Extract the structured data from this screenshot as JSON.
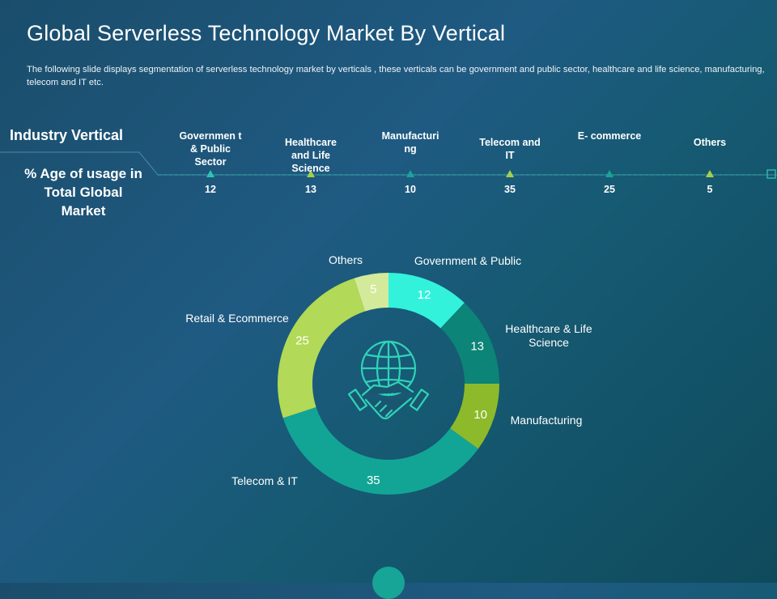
{
  "slide": {
    "title": "Global Serverless Technology Market By Vertical",
    "subtitle": "The following slide displays segmentation of serverless technology market by verticals , these verticals can be government  and public sector, healthcare and life science, manufacturing, telecom and IT etc."
  },
  "table": {
    "row_label": "Industry Vertical",
    "value_label": "% Age of usage in Total Global Market",
    "verticals": [
      {
        "name": "Governmen t & Public Sector",
        "value": "12"
      },
      {
        "name": "Healthcare and Life Science",
        "value": "13"
      },
      {
        "name": "Manufacturi ng",
        "value": "10"
      },
      {
        "name": "Telecom and IT",
        "value": "35"
      },
      {
        "name": "E- commerce",
        "value": "25"
      },
      {
        "name": "Others",
        "value": "5"
      }
    ],
    "marker_colors": [
      "#2fc4b2",
      "#a3d14b",
      "#17a597",
      "#a3d14b",
      "#17a597",
      "#a3d14b"
    ]
  },
  "chart_data": {
    "type": "pie",
    "categories": [
      "Government & Public",
      "Healthcare & Life Science",
      "Manufacturing",
      "Telecom & IT",
      "Retail & Ecommerce",
      "Others"
    ],
    "values": [
      12,
      13,
      10,
      35,
      25,
      5
    ],
    "value_labels": [
      "12",
      "13",
      "10",
      "35",
      "25",
      "5"
    ],
    "colors": [
      "#33f2dc",
      "#0c8477",
      "#8cba2a",
      "#12a596",
      "#b2d957",
      "#d3ea9b"
    ],
    "center_icon": "globe-handshake-icon"
  }
}
